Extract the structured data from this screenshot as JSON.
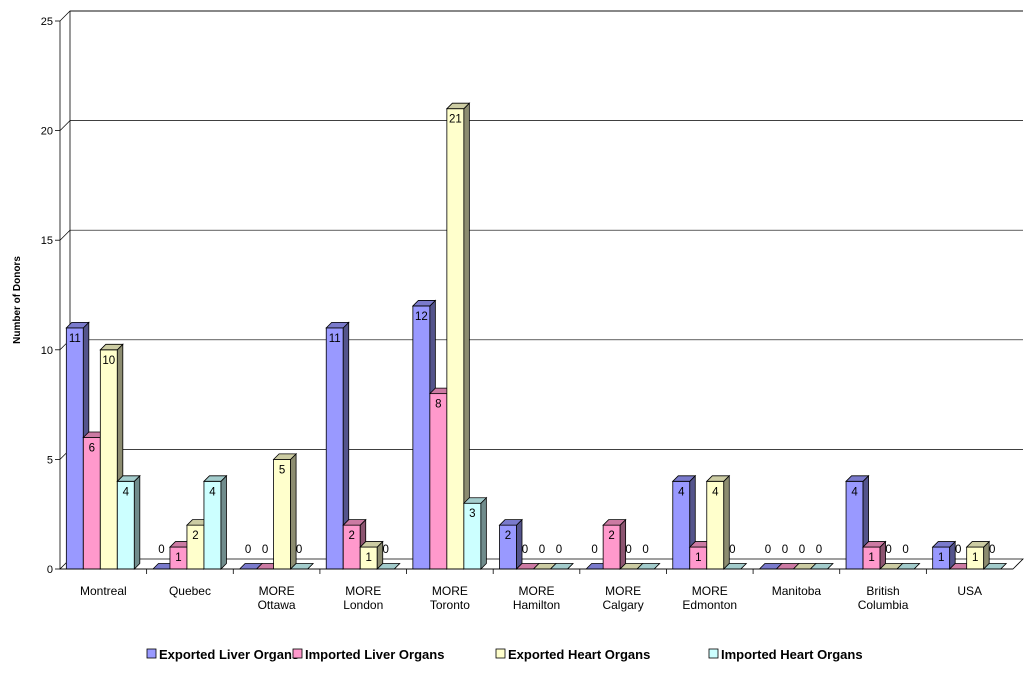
{
  "chart_data": {
    "type": "bar",
    "title": "",
    "xlabel": "",
    "ylabel": "Number of Donors",
    "ylim": [
      0,
      25
    ],
    "yticks": [
      0,
      5,
      10,
      15,
      20,
      25
    ],
    "grid": true,
    "legend_position": "bottom",
    "categories": [
      [
        "Montreal"
      ],
      [
        "Quebec"
      ],
      [
        "MORE",
        "Ottawa"
      ],
      [
        "MORE",
        "London"
      ],
      [
        "MORE",
        "Toronto"
      ],
      [
        "MORE",
        "Hamilton"
      ],
      [
        "MORE",
        "Calgary"
      ],
      [
        "MORE",
        "Edmonton"
      ],
      [
        "Manitoba"
      ],
      [
        "British",
        "Columbia"
      ],
      [
        "USA"
      ]
    ],
    "series": [
      {
        "name": "Exported Liver Organs",
        "color": "#9999ff",
        "values": [
          11,
          0,
          0,
          11,
          12,
          2,
          0,
          4,
          0,
          4,
          1
        ]
      },
      {
        "name": "Imported Liver Organs",
        "color": "#ff99cc",
        "values": [
          6,
          1,
          0,
          2,
          8,
          0,
          2,
          1,
          0,
          1,
          0
        ]
      },
      {
        "name": "Exported Heart Organs",
        "color": "#ffffcc",
        "values": [
          10,
          2,
          5,
          1,
          21,
          0,
          0,
          4,
          0,
          0,
          1
        ]
      },
      {
        "name": "Imported Heart Organs",
        "color": "#ccffff",
        "values": [
          4,
          4,
          0,
          0,
          3,
          0,
          0,
          0,
          0,
          0,
          0
        ]
      }
    ]
  }
}
